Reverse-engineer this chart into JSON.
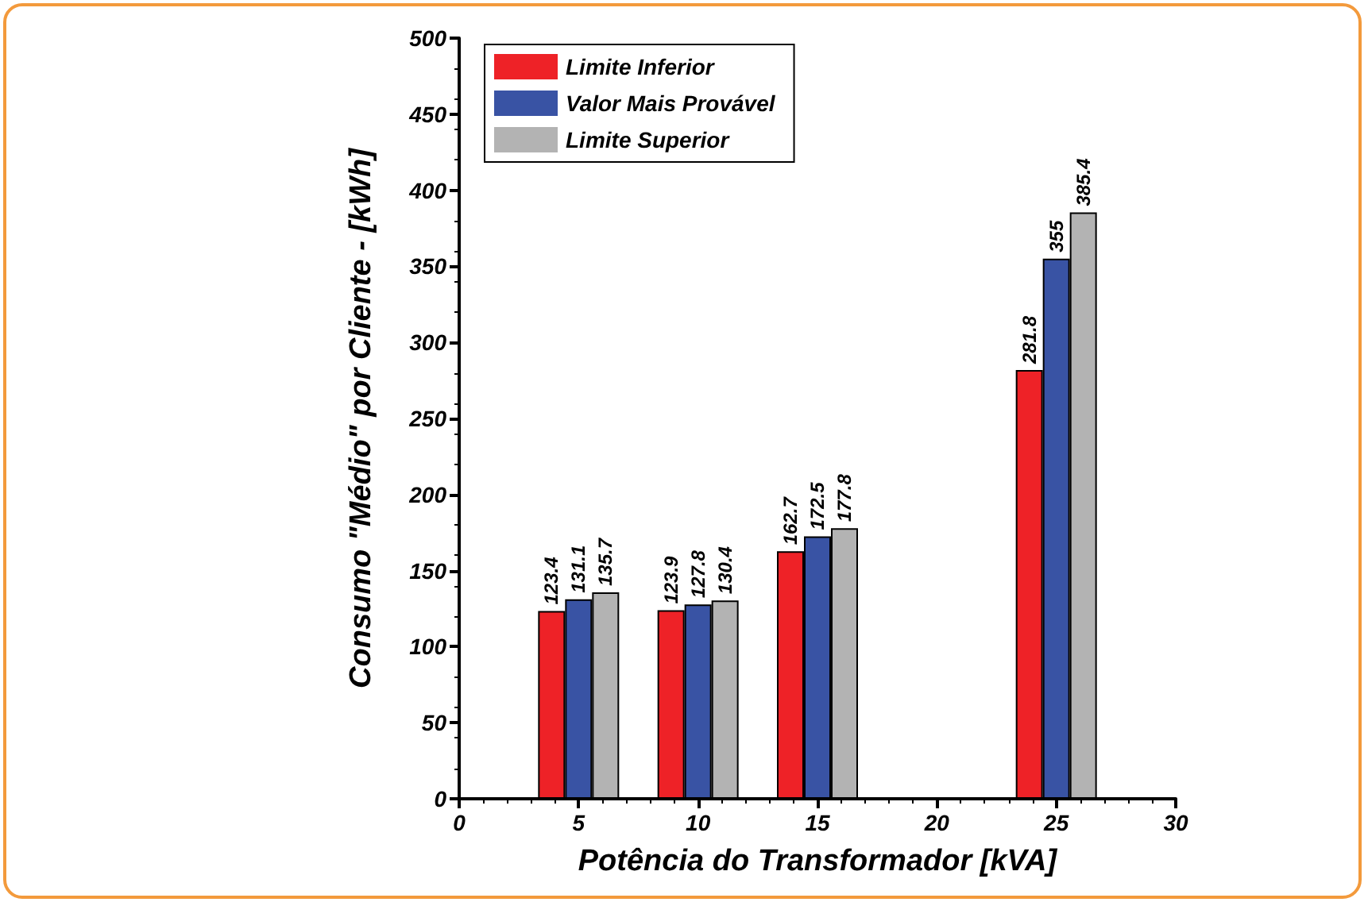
{
  "chart_data": {
    "type": "bar",
    "xlabel": "Potência do Transformador [kVA]",
    "ylabel": "Consumo \"Médio\" por Cliente - [kWh]",
    "x": [
      5,
      10,
      15,
      25
    ],
    "series": [
      {
        "name": "Limite Inferior",
        "color": "#ee2227",
        "values": [
          123.4,
          123.9,
          162.7,
          281.8
        ]
      },
      {
        "name": "Valor Mais Provável",
        "color": "#3953a4",
        "values": [
          131.1,
          127.8,
          172.5,
          355
        ]
      },
      {
        "name": "Limite Superior",
        "color": "#b3b3b3",
        "values": [
          135.7,
          130.4,
          177.8,
          385.4
        ]
      }
    ],
    "xlim": [
      0,
      30
    ],
    "xticks": [
      0,
      5,
      10,
      15,
      20,
      25,
      30
    ],
    "ylim": [
      0,
      500
    ],
    "yticks": [
      0,
      50,
      100,
      150,
      200,
      250,
      300,
      350,
      400,
      450,
      500
    ],
    "grid": false,
    "legend": "top left",
    "data_labels": true
  }
}
